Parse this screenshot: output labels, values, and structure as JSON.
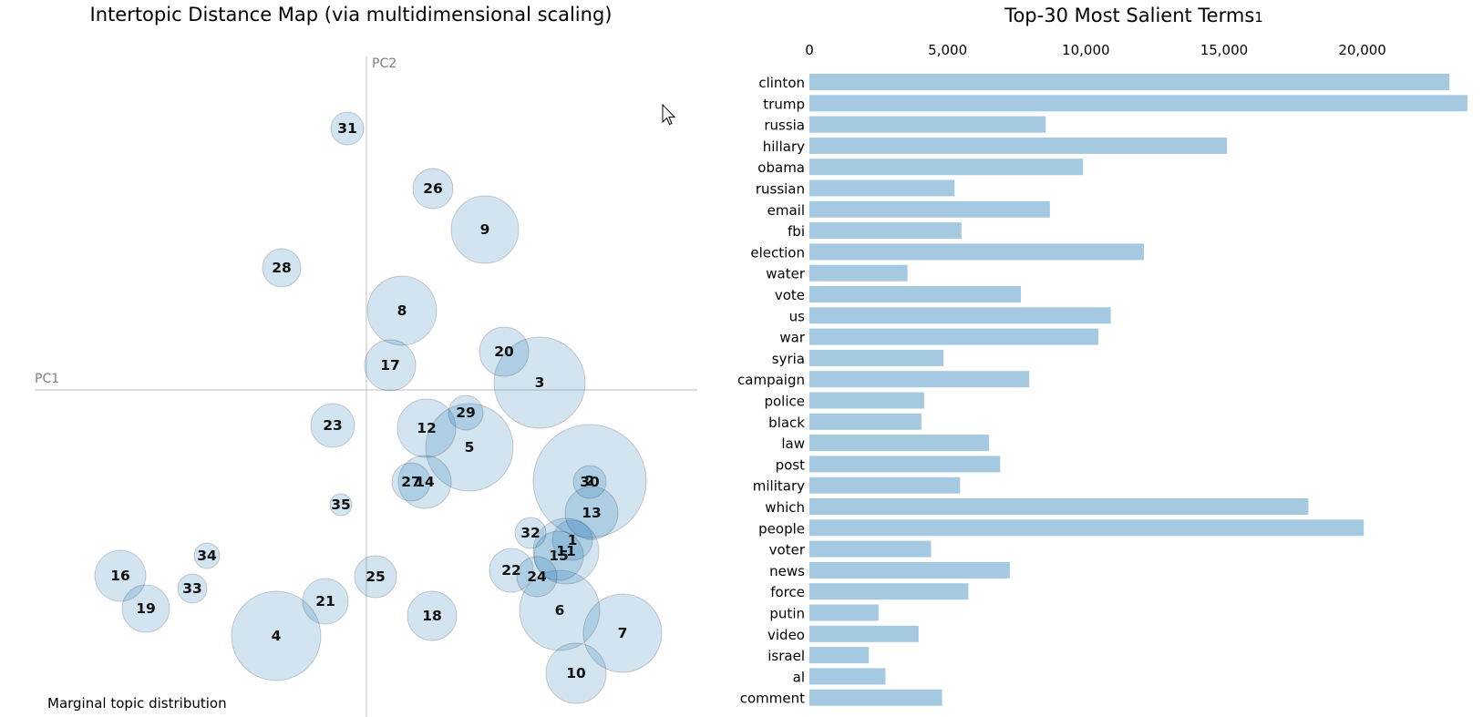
{
  "chart_data": [
    {
      "type": "scatter",
      "title": "Intertopic Distance Map (via multidimensional scaling)",
      "xlabel": "PC1",
      "ylabel": "PC2",
      "xlim": [
        -330,
        310
      ],
      "ylim": [
        -330,
        310
      ],
      "topics": [
        {
          "id": "1",
          "x": 226,
          "y": -165,
          "r": 22
        },
        {
          "id": "2",
          "x": 245,
          "y": -100,
          "r": 62
        },
        {
          "id": "3",
          "x": 190,
          "y": 8,
          "r": 50
        },
        {
          "id": "4",
          "x": -99,
          "y": -270,
          "r": 49
        },
        {
          "id": "5",
          "x": 113,
          "y": -63,
          "r": 48
        },
        {
          "id": "6",
          "x": 212,
          "y": -242,
          "r": 44
        },
        {
          "id": "7",
          "x": 281,
          "y": -267,
          "r": 43
        },
        {
          "id": "8",
          "x": 39,
          "y": 87,
          "r": 38
        },
        {
          "id": "9",
          "x": 130,
          "y": 176,
          "r": 37
        },
        {
          "id": "10",
          "x": 230,
          "y": -311,
          "r": 33
        },
        {
          "id": "11",
          "x": 219,
          "y": -177,
          "r": 36
        },
        {
          "id": "12",
          "x": 66,
          "y": -42,
          "r": 32
        },
        {
          "id": "13",
          "x": 247,
          "y": -135,
          "r": 29
        },
        {
          "id": "14",
          "x": 64,
          "y": -101,
          "r": 29
        },
        {
          "id": "15",
          "x": 211,
          "y": -182,
          "r": 27
        },
        {
          "id": "16",
          "x": -270,
          "y": -204,
          "r": 28
        },
        {
          "id": "17",
          "x": 26,
          "y": 27,
          "r": 28
        },
        {
          "id": "18",
          "x": 72,
          "y": -248,
          "r": 27
        },
        {
          "id": "19",
          "x": -242,
          "y": -240,
          "r": 26
        },
        {
          "id": "20",
          "x": 151,
          "y": 42,
          "r": 27
        },
        {
          "id": "21",
          "x": -45,
          "y": -232,
          "r": 25
        },
        {
          "id": "22",
          "x": 159,
          "y": -198,
          "r": 24
        },
        {
          "id": "23",
          "x": -37,
          "y": -39,
          "r": 24
        },
        {
          "id": "24",
          "x": 187,
          "y": -205,
          "r": 22
        },
        {
          "id": "25",
          "x": 10,
          "y": -205,
          "r": 23
        },
        {
          "id": "26",
          "x": 73,
          "y": 221,
          "r": 22
        },
        {
          "id": "27",
          "x": 49,
          "y": -101,
          "r": 21
        },
        {
          "id": "28",
          "x": -93,
          "y": 134,
          "r": 21
        },
        {
          "id": "29",
          "x": 109,
          "y": -25,
          "r": 19
        },
        {
          "id": "30",
          "x": 245,
          "y": -101,
          "r": 18
        },
        {
          "id": "31",
          "x": -21,
          "y": 287,
          "r": 18
        },
        {
          "id": "32",
          "x": 180,
          "y": -157,
          "r": 17
        },
        {
          "id": "33",
          "x": -191,
          "y": -218,
          "r": 16
        },
        {
          "id": "34",
          "x": -175,
          "y": -182,
          "r": 14
        },
        {
          "id": "35",
          "x": -28,
          "y": -126,
          "r": 12
        }
      ]
    },
    {
      "type": "bar",
      "orientation": "horizontal",
      "title": "Top-30 Most Salient Terms",
      "title_superscript": "1",
      "xlim": [
        0,
        23800
      ],
      "ticks": [
        0,
        5000,
        10000,
        15000,
        20000
      ],
      "tick_labels": [
        "0",
        "5,000",
        "10,000",
        "15,000",
        "20,000"
      ],
      "categories": [
        "clinton",
        "trump",
        "russia",
        "hillary",
        "obama",
        "russian",
        "email",
        "fbi",
        "election",
        "water",
        "vote",
        "us",
        "war",
        "syria",
        "campaign",
        "police",
        "black",
        "law",
        "post",
        "military",
        "which",
        "people",
        "voter",
        "news",
        "force",
        "putin",
        "video",
        "israel",
        "al",
        "comment"
      ],
      "values": [
        23150,
        23800,
        8550,
        15100,
        9900,
        5250,
        8700,
        5500,
        12100,
        3550,
        7650,
        10900,
        10450,
        4850,
        7950,
        4150,
        4050,
        6500,
        6900,
        5450,
        18050,
        20050,
        4400,
        7250,
        5750,
        2500,
        3950,
        2150,
        2750,
        4800
      ]
    }
  ],
  "marginal_label": "Marginal topic distribution"
}
